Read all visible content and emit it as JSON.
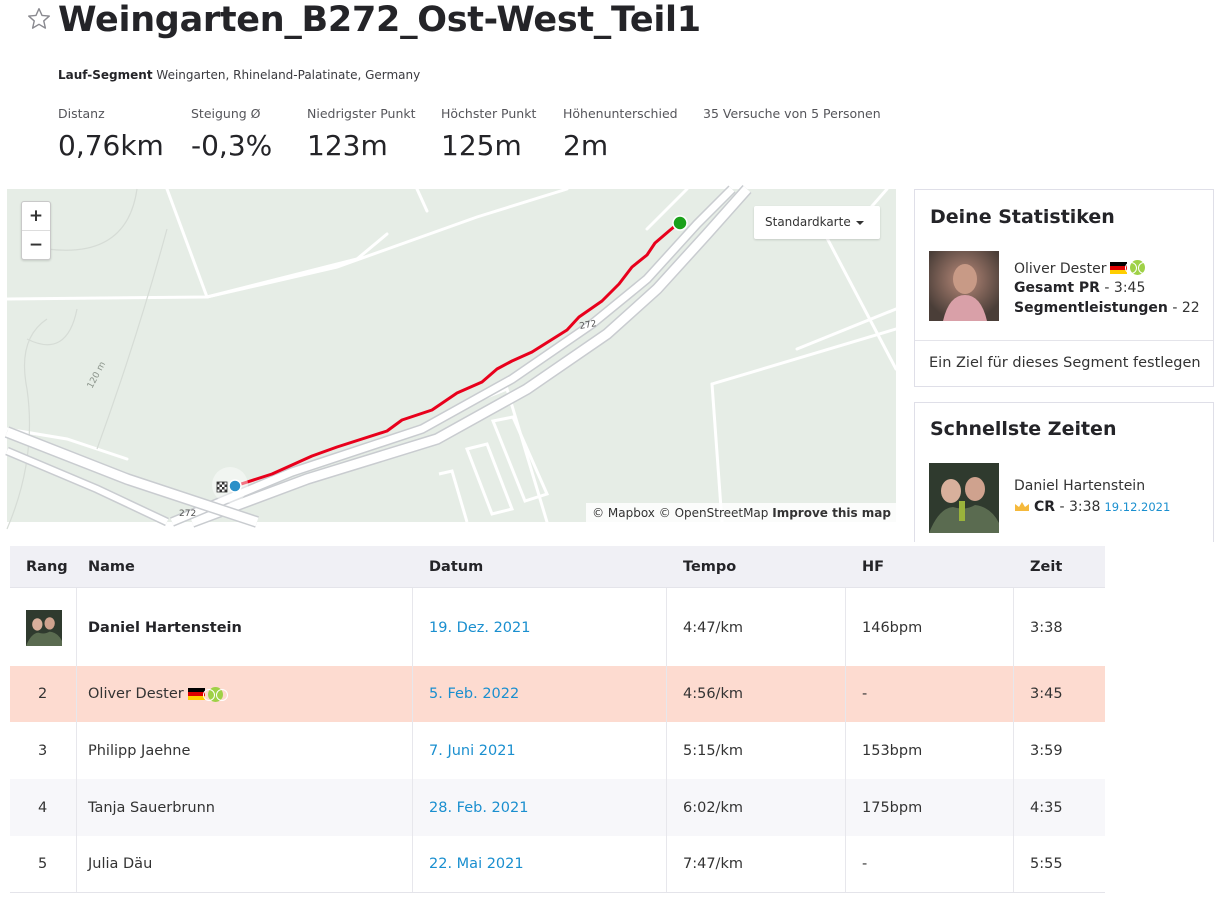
{
  "header": {
    "title": "Weingarten_B272_Ost-West_Teil1",
    "segment_type": "Lauf-Segment",
    "location": "Weingarten, Rhineland-Palatinate, Germany"
  },
  "stats": [
    {
      "label": "Distanz",
      "value": "0,76km"
    },
    {
      "label": "Steigung Ø",
      "value": "-0,3%"
    },
    {
      "label": "Niedrigster Punkt",
      "value": "123m"
    },
    {
      "label": "Höchster Punkt",
      "value": "125m"
    },
    {
      "label": "Höhenunterschied",
      "value": "2m"
    },
    {
      "label": "35 Versuche von 5 Personen",
      "value": ""
    }
  ],
  "map": {
    "zoom_in": "+",
    "zoom_out": "−",
    "map_type": "Standardkarte",
    "road_label_1": "272",
    "road_label_2": "272",
    "contour_label": "120 m",
    "attribution_mapbox": "© Mapbox",
    "attribution_osm": "© OpenStreetMap",
    "attribution_improve": "Improve this map",
    "route_color": "#e8001c",
    "start_color": "#1aa11a",
    "end_color": "#2b90c8"
  },
  "my_stats": {
    "title": "Deine Statistiken",
    "name": "Oliver Dester",
    "pr_label": "Gesamt PR",
    "pr_value": "- 3:45",
    "efforts_label": "Segmentleistungen",
    "efforts_value": "- 22",
    "goal_text": "Ein Ziel für dieses Segment festlegen"
  },
  "fastest": {
    "title": "Schnellste Zeiten",
    "name": "Daniel Hartenstein",
    "cr_label": "CR",
    "cr_value": "- 3:38",
    "cr_date": "19.12.2021"
  },
  "leaderboard": {
    "columns": [
      "Rang",
      "Name",
      "Datum",
      "Tempo",
      "HF",
      "Zeit"
    ],
    "rows": [
      {
        "rank": "",
        "name": "Daniel Hartenstein",
        "date": "19. Dez. 2021",
        "pace": "4:47/km",
        "hr": "146bpm",
        "time": "3:38"
      },
      {
        "rank": "2",
        "name": "Oliver Dester",
        "date": "5. Feb. 2022",
        "pace": "4:56/km",
        "hr": "-",
        "time": "3:45"
      },
      {
        "rank": "3",
        "name": "Philipp Jaehne",
        "date": "7. Juni 2021",
        "pace": "5:15/km",
        "hr": "153bpm",
        "time": "3:59"
      },
      {
        "rank": "4",
        "name": "Tanja Sauerbrunn",
        "date": "28. Feb. 2021",
        "pace": "6:02/km",
        "hr": "175bpm",
        "time": "4:35"
      },
      {
        "rank": "5",
        "name": "Julia Däu",
        "date": "22. Mai 2021",
        "pace": "7:47/km",
        "hr": "-",
        "time": "5:55"
      }
    ],
    "highlight_color": "#fddbd0",
    "stripe_color": "#f7f7fa"
  }
}
